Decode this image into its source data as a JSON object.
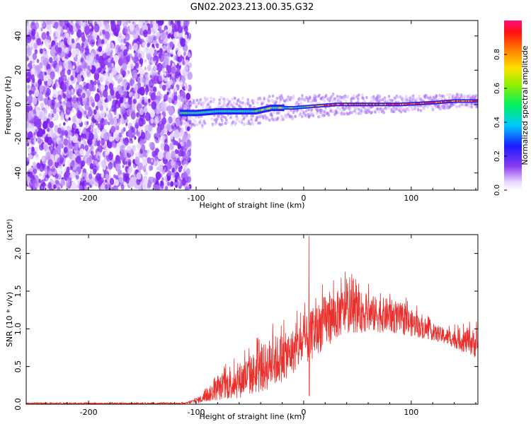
{
  "title": "GN02.2023.213.00.35.G32",
  "chart_data": [
    {
      "type": "heatmap",
      "xlabel": "Height of straight line (km)",
      "ylabel": "Frequency (Hz)",
      "xlim": [
        -258,
        162
      ],
      "ylim": [
        -50,
        49
      ],
      "xticks": [
        -200,
        -100,
        0,
        100
      ],
      "yticks": [
        -40,
        -20,
        0,
        20,
        40
      ],
      "colorbar": {
        "label": "Normalized spectral amplitude",
        "range": [
          0,
          1
        ],
        "ticks": [
          "0.0",
          "0.2",
          "0.4",
          "0.6",
          "0.8"
        ]
      },
      "trace_centerline": [
        {
          "x": -115,
          "f": -5
        },
        {
          "x": -100,
          "f": -5
        },
        {
          "x": -80,
          "f": -4
        },
        {
          "x": -60,
          "f": -4
        },
        {
          "x": -45,
          "f": -4
        },
        {
          "x": -30,
          "f": -2
        },
        {
          "x": -10,
          "f": -2
        },
        {
          "x": 10,
          "f": -1
        },
        {
          "x": 30,
          "f": 0
        },
        {
          "x": 60,
          "f": 0
        },
        {
          "x": 90,
          "f": 0
        },
        {
          "x": 120,
          "f": 1
        },
        {
          "x": 140,
          "f": 2
        },
        {
          "x": 162,
          "f": 2
        }
      ]
    },
    {
      "type": "line",
      "xlabel": "Height of straight line (km)",
      "ylabel": "SNR (10 * v/v)",
      "y_multiplier": "(x10⁴)",
      "xlim": [
        -258,
        162
      ],
      "ylim": [
        0,
        2.25
      ],
      "xticks": [
        -200,
        -100,
        0,
        100
      ],
      "yticks": [
        "0.0",
        "0.5",
        "1.0",
        "1.5",
        "2.0"
      ],
      "color": "#e8302c",
      "envelope": [
        {
          "x": -258,
          "lo": 0.0,
          "hi": 0.02
        },
        {
          "x": -110,
          "lo": 0.0,
          "hi": 0.02
        },
        {
          "x": -95,
          "lo": 0.02,
          "hi": 0.12
        },
        {
          "x": -80,
          "lo": 0.05,
          "hi": 0.35
        },
        {
          "x": -60,
          "lo": 0.08,
          "hi": 0.55
        },
        {
          "x": -40,
          "lo": 0.15,
          "hi": 0.75
        },
        {
          "x": -30,
          "lo": 0.2,
          "hi": 0.9
        },
        {
          "x": -15,
          "lo": 0.35,
          "hi": 0.95
        },
        {
          "x": -5,
          "lo": 0.45,
          "hi": 1.05
        },
        {
          "x": 5,
          "lo": 0.55,
          "hi": 1.2
        },
        {
          "x": 20,
          "lo": 0.75,
          "hi": 1.45
        },
        {
          "x": 40,
          "lo": 0.95,
          "hi": 1.55
        },
        {
          "x": 60,
          "lo": 0.95,
          "hi": 1.45
        },
        {
          "x": 80,
          "lo": 0.95,
          "hi": 1.4
        },
        {
          "x": 100,
          "lo": 0.9,
          "hi": 1.25
        },
        {
          "x": 120,
          "lo": 0.85,
          "hi": 1.05
        },
        {
          "x": 140,
          "lo": 0.75,
          "hi": 0.98
        },
        {
          "x": 162,
          "lo": 0.6,
          "hi": 1.0
        }
      ],
      "peak": {
        "x": 5,
        "y": 2.23
      }
    }
  ]
}
